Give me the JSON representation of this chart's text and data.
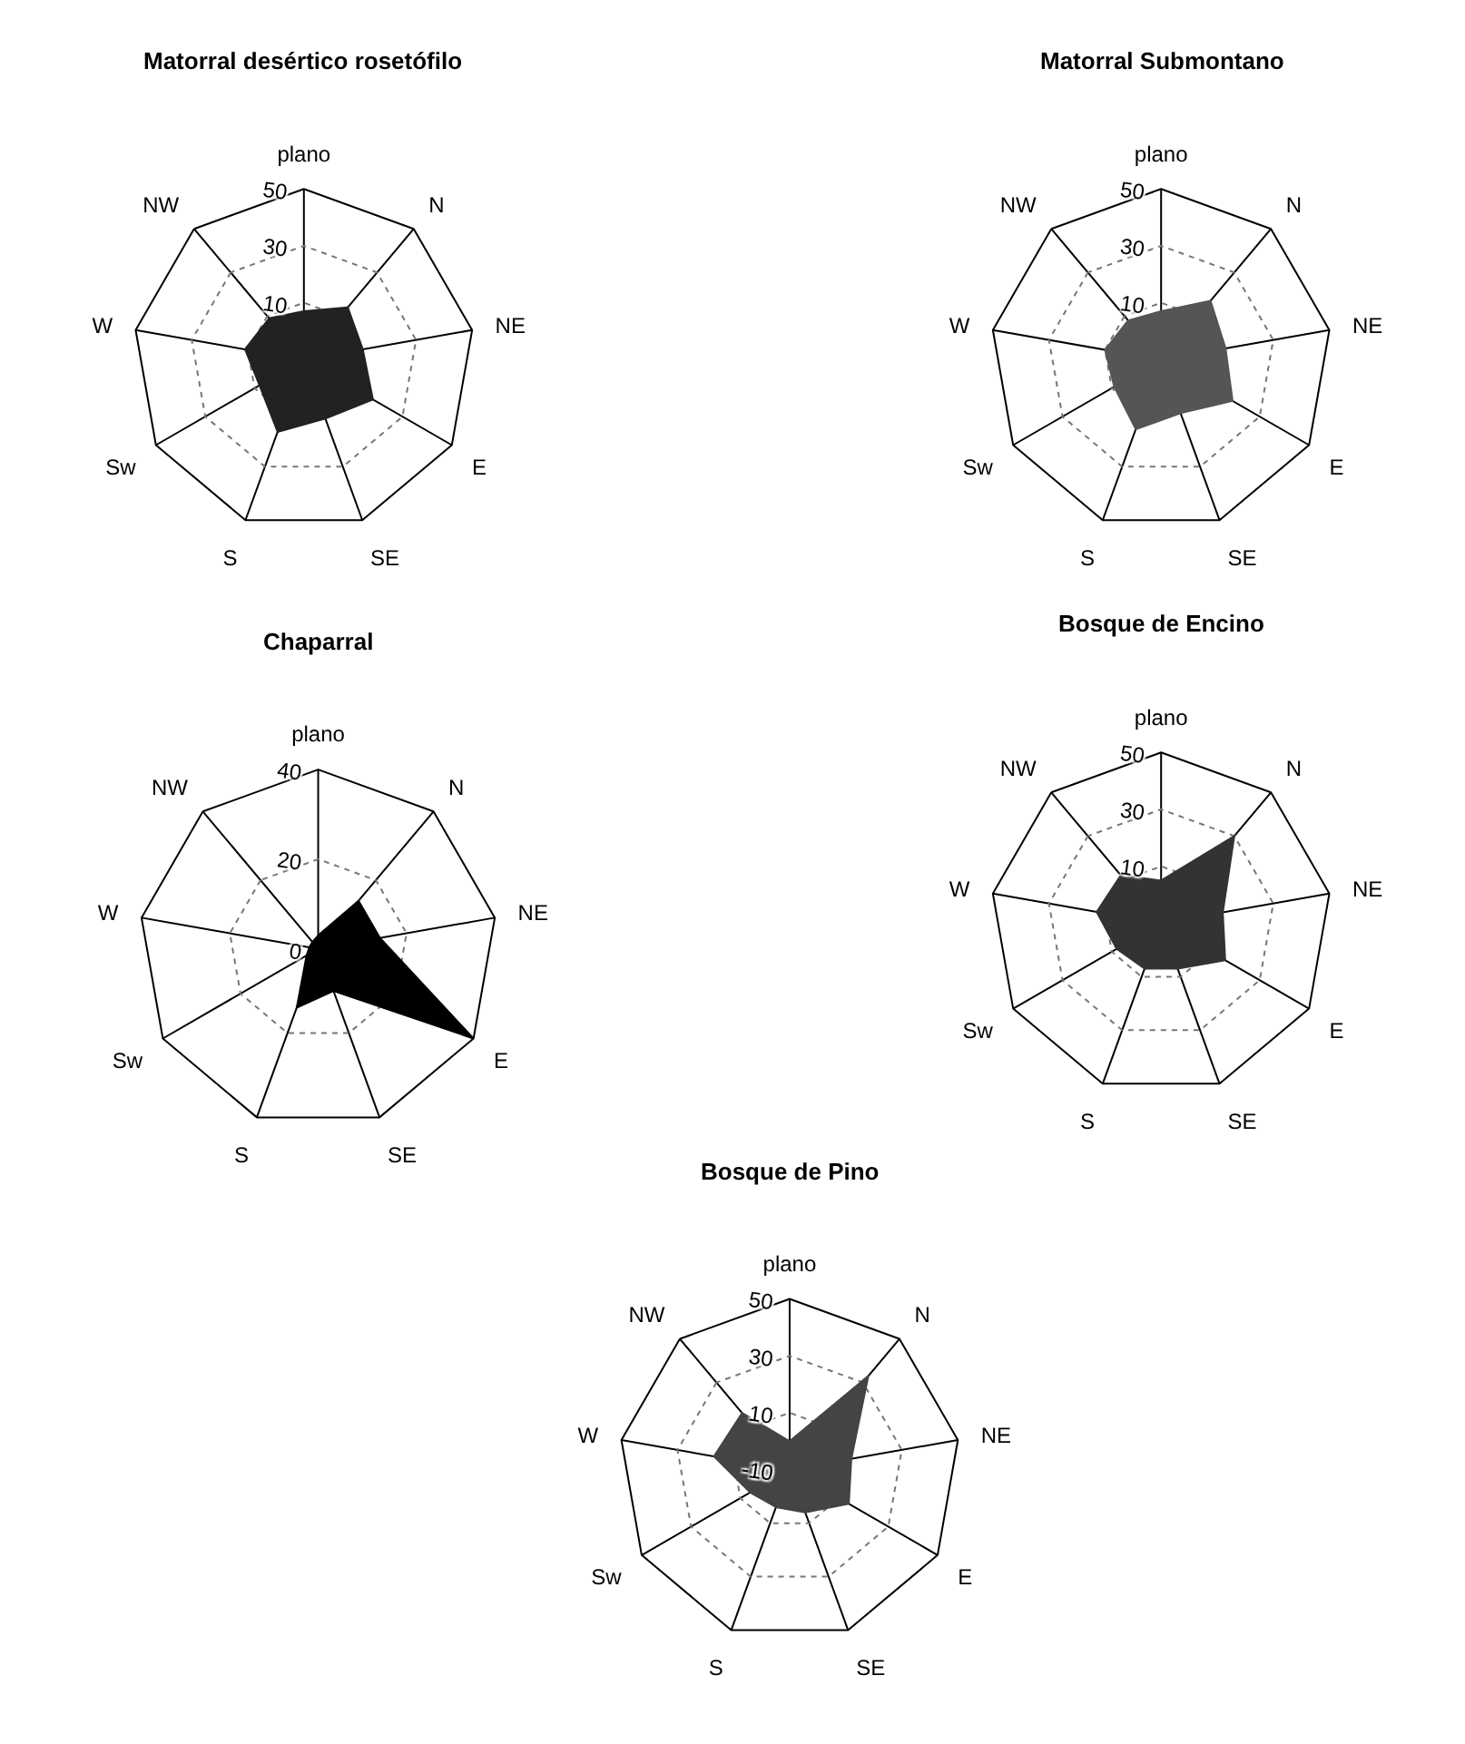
{
  "chart_data": [
    {
      "type": "radar",
      "title": "Matorral desértico rosetófilo",
      "categories": [
        "plano",
        "N",
        "NE",
        "E",
        "SE",
        "S",
        "Sw",
        "W",
        "NW"
      ],
      "series": [
        {
          "color": "#222222",
          "values": [
            7,
            14,
            11,
            18,
            12,
            17,
            8,
            11,
            9
          ]
        }
      ],
      "ylim": [
        -10,
        50
      ],
      "yticks": [
        10,
        30,
        50
      ],
      "grid": true
    },
    {
      "type": "radar",
      "title": "Matorral Submontano",
      "categories": [
        "plano",
        "N",
        "NE",
        "E",
        "SE",
        "S",
        "Sw",
        "W",
        "NW"
      ],
      "series": [
        {
          "color": "#555555",
          "values": [
            7,
            17,
            13,
            19,
            10,
            16,
            9,
            10,
            8
          ]
        }
      ],
      "ylim": [
        -10,
        50
      ],
      "yticks": [
        10,
        30,
        50
      ],
      "grid": true
    },
    {
      "type": "radar",
      "title": "Chaparral",
      "categories": [
        "plano",
        "N",
        "NE",
        "E",
        "SE",
        "S",
        "Sw",
        "W",
        "NW"
      ],
      "series": [
        {
          "color": "#000000",
          "values": [
            3,
            14,
            14,
            40,
            10,
            14,
            3,
            2,
            2
          ]
        }
      ],
      "ylim": [
        0,
        40
      ],
      "yticks": [
        0,
        20,
        40
      ],
      "grid": true
    },
    {
      "type": "radar",
      "title": "Bosque de Encino",
      "categories": [
        "plano",
        "N",
        "NE",
        "E",
        "SE",
        "S",
        "Sw",
        "W",
        "NW"
      ],
      "series": [
        {
          "color": "#333333",
          "values": [
            5,
            30,
            12,
            16,
            7,
            7,
            8,
            13,
            12
          ]
        }
      ],
      "ylim": [
        -10,
        50
      ],
      "yticks": [
        10,
        30,
        50
      ],
      "grid": true
    },
    {
      "type": "radar",
      "title": "Bosque de Pino",
      "categories": [
        "plano",
        "N",
        "NE",
        "E",
        "SE",
        "S",
        "Sw",
        "W",
        "NW"
      ],
      "series": [
        {
          "color": "#444444",
          "values": [
            0,
            33,
            12,
            14,
            6,
            4,
            6,
            17,
            16
          ]
        }
      ],
      "ylim": [
        -10,
        50
      ],
      "yticks": [
        -10,
        10,
        30,
        50
      ],
      "grid": true
    }
  ]
}
